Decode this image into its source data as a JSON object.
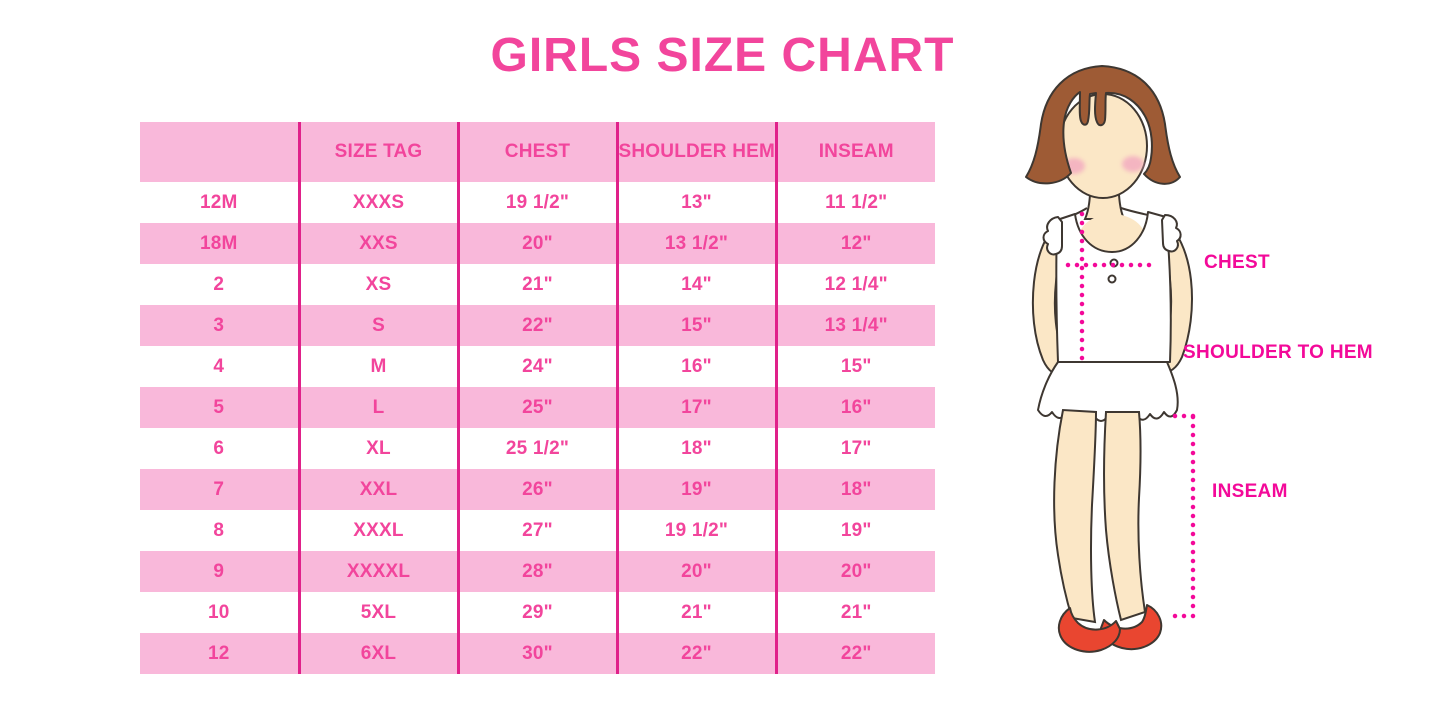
{
  "title": "GIRLS SIZE CHART",
  "colors": {
    "title_pink": "#f2459c",
    "row_light_pink": "#f9b8da",
    "divider_magenta": "#e0218a",
    "measure_magenta": "#f30999",
    "hair_brown": "#9e5b35",
    "skin": "#fbe7c6",
    "blush_pink": "#f3a9c0",
    "shoe_red": "#e94630"
  },
  "table": {
    "headers": [
      "",
      "SIZE TAG",
      "CHEST",
      "SHOULDER HEM",
      "INSEAM"
    ],
    "rows": [
      [
        "12M",
        "XXXS",
        "19 1/2\"",
        "13\"",
        "11 1/2\""
      ],
      [
        "18M",
        "XXS",
        "20\"",
        "13 1/2\"",
        "12\""
      ],
      [
        "2",
        "XS",
        "21\"",
        "14\"",
        "12 1/4\""
      ],
      [
        "3",
        "S",
        "22\"",
        "15\"",
        "13 1/4\""
      ],
      [
        "4",
        "M",
        "24\"",
        "16\"",
        "15\""
      ],
      [
        "5",
        "L",
        "25\"",
        "17\"",
        "16\""
      ],
      [
        "6",
        "XL",
        "25 1/2\"",
        "18\"",
        "17\""
      ],
      [
        "7",
        "XXL",
        "26\"",
        "19\"",
        "18\""
      ],
      [
        "8",
        "XXXL",
        "27\"",
        "19 1/2\"",
        "19\""
      ],
      [
        "9",
        "XXXXL",
        "28\"",
        "20\"",
        "20\""
      ],
      [
        "10",
        "5XL",
        "29\"",
        "21\"",
        "21\""
      ],
      [
        "12",
        "6XL",
        "30\"",
        "22\"",
        "22\""
      ]
    ]
  },
  "figure_labels": {
    "chest": "CHEST",
    "shoulder_to_hem": "SHOULDER TO HEM",
    "inseam": "INSEAM"
  }
}
